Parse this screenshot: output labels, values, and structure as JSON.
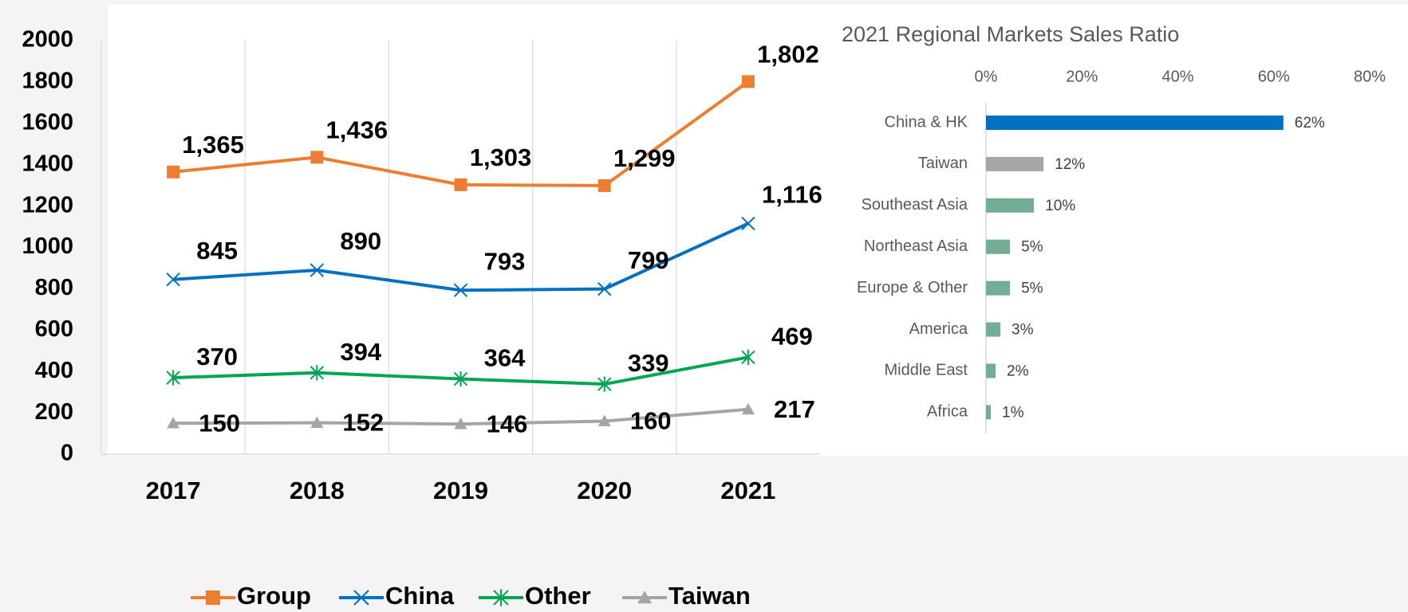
{
  "chart_data": [
    {
      "type": "line",
      "categories": [
        "2017",
        "2018",
        "2019",
        "2020",
        "2021"
      ],
      "series": [
        {
          "name": "Group",
          "color": "#ed7d31",
          "marker": "square",
          "values": [
            1365,
            1436,
            1303,
            1299,
            1802
          ],
          "value_labels": [
            "1,365",
            "1,436",
            "1,303",
            "1,299",
            "1,802"
          ]
        },
        {
          "name": "China",
          "color": "#0070c0",
          "marker": "x",
          "values": [
            845,
            890,
            793,
            799,
            1116
          ],
          "value_labels": [
            "845",
            "890",
            "793",
            "799",
            "1,116"
          ]
        },
        {
          "name": "Other",
          "color": "#00a651",
          "marker": "asterisk",
          "values": [
            370,
            394,
            364,
            339,
            469
          ]
        },
        {
          "name": "Taiwan",
          "color": "#a5a5a5",
          "marker": "triangle",
          "values": [
            150,
            152,
            146,
            160,
            217
          ]
        }
      ],
      "ylim": [
        0,
        2000
      ],
      "yticks": [
        0,
        200,
        400,
        600,
        800,
        1000,
        1200,
        1400,
        1600,
        1800,
        2000
      ],
      "grid": true,
      "legend": "bottom"
    },
    {
      "type": "hbar",
      "title": "2021 Regional Markets Sales Ratio",
      "categories": [
        "China & HK",
        "Taiwan",
        "Southeast Asia",
        "Northeast Asia",
        "Europe & Other",
        "America",
        "Middle East",
        "Africa"
      ],
      "values": [
        62,
        12,
        10,
        5,
        5,
        3,
        2,
        1
      ],
      "value_labels": [
        "62%",
        "12%",
        "10%",
        "5%",
        "5%",
        "3%",
        "2%",
        "1%"
      ],
      "colors": [
        "#0070c0",
        "#a6a6a6",
        "#72ad94",
        "#72ad94",
        "#72ad94",
        "#72ad94",
        "#72ad94",
        "#72ad94"
      ],
      "xlim": [
        0,
        80
      ],
      "xticks": [
        {
          "value": 0,
          "label": "0%"
        },
        {
          "value": 20,
          "label": "20%"
        },
        {
          "value": 40,
          "label": "40%"
        },
        {
          "value": 60,
          "label": "60%"
        },
        {
          "value": 80,
          "label": "80%"
        }
      ]
    }
  ]
}
